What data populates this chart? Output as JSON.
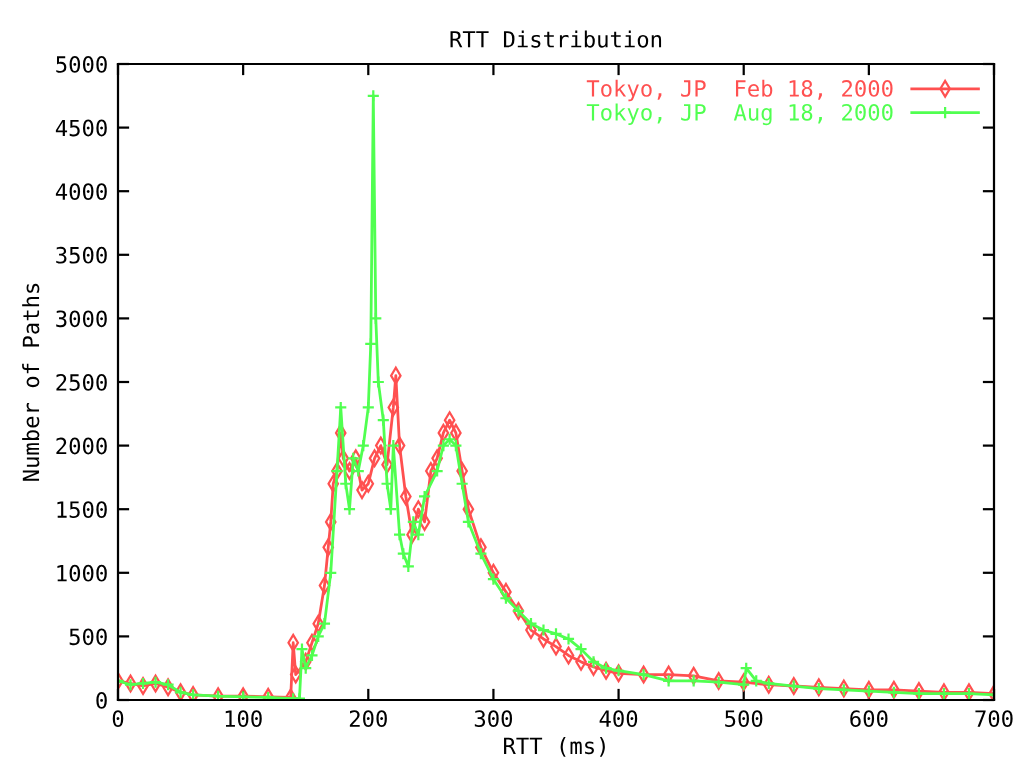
{
  "chart_data": {
    "type": "line",
    "title": "RTT Distribution",
    "xlabel": "RTT (ms)",
    "ylabel": "Number of Paths",
    "xlim": [
      0,
      700
    ],
    "xticks": [
      0,
      100,
      200,
      300,
      400,
      500,
      600,
      700
    ],
    "ylim": [
      0,
      5000
    ],
    "yticks": [
      0,
      500,
      1000,
      1500,
      2000,
      2500,
      3000,
      3500,
      4000,
      4500,
      5000
    ],
    "grid": false,
    "legend": "top right",
    "series": [
      {
        "name": "Tokyo, JP  Feb 18, 2000",
        "color": "#ff5050",
        "marker": "diamond",
        "x": [
          0,
          10,
          20,
          30,
          40,
          50,
          60,
          80,
          100,
          120,
          138,
          140,
          142,
          150,
          155,
          160,
          165,
          168,
          170,
          172,
          175,
          178,
          180,
          185,
          190,
          195,
          200,
          205,
          210,
          215,
          220,
          222,
          225,
          230,
          235,
          240,
          245,
          250,
          255,
          260,
          265,
          270,
          275,
          280,
          290,
          300,
          310,
          320,
          330,
          340,
          350,
          360,
          370,
          380,
          390,
          400,
          420,
          440,
          460,
          480,
          500,
          520,
          540,
          560,
          580,
          600,
          620,
          640,
          660,
          680,
          700
        ],
        "values": [
          150,
          130,
          110,
          130,
          100,
          60,
          40,
          30,
          30,
          25,
          20,
          450,
          200,
          300,
          450,
          600,
          900,
          1200,
          1400,
          1700,
          1800,
          2100,
          1900,
          1800,
          1900,
          1650,
          1700,
          1900,
          2000,
          1850,
          2300,
          2550,
          2000,
          1600,
          1300,
          1500,
          1400,
          1800,
          1900,
          2100,
          2200,
          2100,
          1800,
          1500,
          1200,
          1000,
          850,
          700,
          550,
          480,
          420,
          350,
          300,
          260,
          230,
          210,
          200,
          200,
          190,
          150,
          140,
          120,
          110,
          100,
          90,
          80,
          80,
          70,
          60,
          60,
          50
        ]
      },
      {
        "name": "Tokyo, JP  Aug 18, 2000",
        "color": "#50ff50",
        "marker": "cross",
        "x": [
          0,
          10,
          20,
          30,
          40,
          50,
          60,
          80,
          100,
          120,
          140,
          145,
          147,
          150,
          155,
          160,
          165,
          170,
          175,
          178,
          182,
          185,
          188,
          192,
          196,
          200,
          202,
          204,
          206,
          208,
          212,
          215,
          218,
          220,
          225,
          228,
          232,
          236,
          240,
          245,
          255,
          260,
          265,
          270,
          275,
          280,
          290,
          300,
          310,
          320,
          330,
          340,
          350,
          360,
          370,
          380,
          390,
          400,
          420,
          440,
          460,
          480,
          500,
          502,
          510,
          520,
          540,
          560,
          580,
          600,
          620,
          640,
          660,
          680,
          700
        ],
        "values": [
          150,
          120,
          130,
          140,
          120,
          60,
          40,
          30,
          25,
          20,
          10,
          10,
          400,
          250,
          350,
          500,
          600,
          1000,
          1800,
          2300,
          1700,
          1500,
          1900,
          1800,
          2000,
          2300,
          2800,
          4750,
          3000,
          2500,
          2200,
          1700,
          1500,
          2000,
          1300,
          1150,
          1050,
          1400,
          1300,
          1600,
          1800,
          2000,
          2050,
          2000,
          1700,
          1400,
          1150,
          950,
          800,
          700,
          600,
          550,
          520,
          480,
          400,
          300,
          250,
          230,
          200,
          150,
          150,
          140,
          120,
          250,
          150,
          130,
          110,
          90,
          80,
          70,
          60,
          50,
          50,
          50,
          40
        ]
      }
    ]
  }
}
